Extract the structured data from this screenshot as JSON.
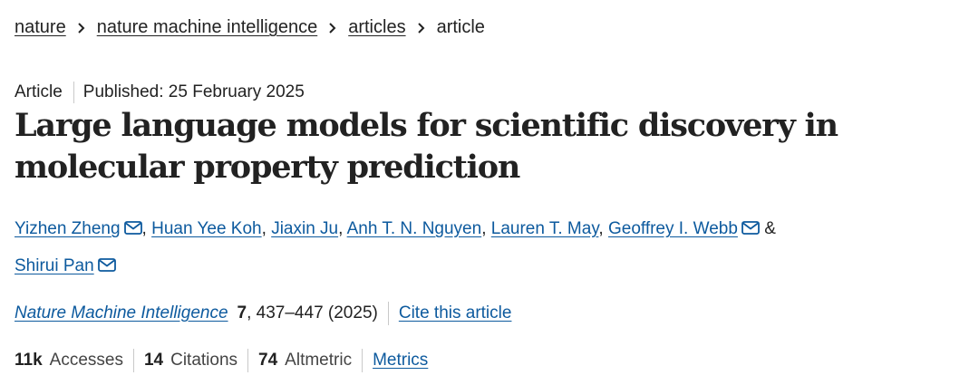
{
  "breadcrumb": {
    "items": [
      "nature",
      "nature machine intelligence",
      "articles"
    ],
    "current": "article",
    "separator_icon": "chevron-right-icon"
  },
  "meta": {
    "type": "Article",
    "published": "Published: 25 February 2025"
  },
  "title_lines": [
    "Large language models for scientific discovery in",
    "molecular property prediction"
  ],
  "authors": {
    "names": [
      "Yizhen Zheng",
      "Huan Yee Koh",
      "Jiaxin Ju",
      "Anh T. N. Nguyen",
      "Lauren T. May",
      "Geoffrey I. Webb",
      "Shirui Pan"
    ],
    "separator": ",",
    "ampersand": "&",
    "mail_icon": "envelope-icon"
  },
  "citation": {
    "journal": "Nature Machine Intelligence",
    "volume": "7",
    "pages_year": ", 437–447 (2025)",
    "cite_link": "Cite this article"
  },
  "metrics": {
    "accesses_value": "11k",
    "accesses_label": "Accesses",
    "citations_value": "14",
    "citations_label": "Citations",
    "altmetric_value": "74",
    "altmetric_label": "Altmetric",
    "metrics_link": "Metrics"
  },
  "colors": {
    "link": "#0d5a9e",
    "text": "#222222",
    "divider": "#c9c9c9"
  }
}
